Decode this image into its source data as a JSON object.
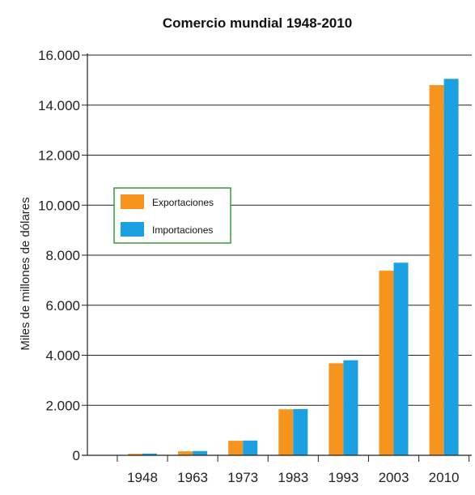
{
  "chart_data": {
    "type": "bar",
    "title": "Comercio mundial 1948-2010",
    "xlabel": "",
    "ylabel": "Miles de millones de dólares",
    "categories": [
      "1948",
      "1963",
      "1973",
      "1983",
      "1993",
      "2003",
      "2010"
    ],
    "series": [
      {
        "name": "Exportaciones",
        "color": "#f7941d",
        "values": [
          60,
          160,
          580,
          1840,
          3680,
          7380,
          14800
        ]
      },
      {
        "name": "Importaciones",
        "color": "#1ba1e2",
        "values": [
          70,
          170,
          590,
          1850,
          3800,
          7700,
          15050
        ]
      }
    ],
    "yticks": [
      "0",
      "2.000",
      "4.000",
      "6.000",
      "8.000",
      "10.000",
      "12.000",
      "14.000",
      "16.000"
    ],
    "ylim": [
      0,
      16000
    ],
    "grid": true,
    "legend_position": "center-left",
    "legend_border_color": "#3a9a3a"
  }
}
